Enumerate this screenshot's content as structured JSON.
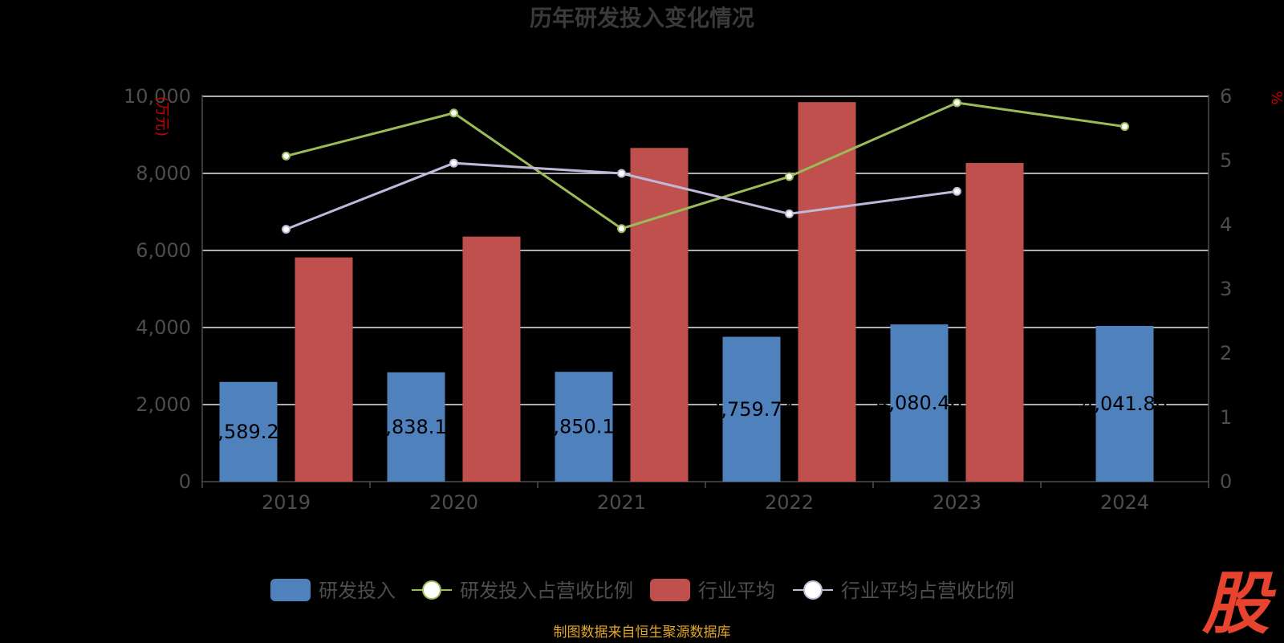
{
  "chart_data": {
    "type": "bar",
    "title": "历年研发投入变化情况",
    "categories": [
      "2019",
      "2020",
      "2021",
      "2022",
      "2023",
      "2024"
    ],
    "y_left_unit": "(万元)",
    "y_right_unit": "%",
    "y_left_range": [
      0,
      10000
    ],
    "y_left_ticks": [
      "0",
      "2,000",
      "4,000",
      "6,000",
      "8,000",
      "10,000"
    ],
    "y_right_range": [
      0,
      6
    ],
    "y_right_ticks": [
      "0",
      "1",
      "2",
      "3",
      "4",
      "5",
      "6"
    ],
    "grid": true,
    "legend_position": "bottom",
    "series": [
      {
        "name": "研发投入",
        "type": "bar",
        "axis": "left",
        "color": "#4f81bd",
        "values": [
          2589.23,
          2838.12,
          2850.17,
          3759.74,
          4080.46,
          4041.8
        ],
        "labels": [
          "2,589.23",
          "2,838.12",
          "2,850.17",
          "3,759.74",
          "4,080.46",
          "4,041.80"
        ]
      },
      {
        "name": "研发投入占营收比例",
        "type": "line",
        "axis": "right",
        "color": "#9bbb59",
        "values": [
          5.07,
          5.74,
          3.94,
          4.75,
          5.9,
          5.53
        ]
      },
      {
        "name": "行业平均",
        "type": "bar",
        "axis": "left",
        "color": "#c0504d",
        "values": [
          5820,
          6360,
          8660,
          9850,
          8270,
          null
        ]
      },
      {
        "name": "行业平均占营收比例",
        "type": "line",
        "axis": "right",
        "color": "#c0b8d8",
        "values": [
          3.93,
          4.96,
          4.8,
          4.17,
          4.52,
          null
        ]
      }
    ]
  },
  "footer": {
    "source": "制图数据来自恒生聚源数据库",
    "watermark": "股"
  },
  "colors": {
    "background": "#000000",
    "title": "#3a3a3a",
    "axis_text": "#4d4d4d",
    "unit_text": "#cc0000",
    "grid": "#e8e8e8",
    "bar_label": "#000000",
    "source_text": "#e3a62c",
    "watermark": "#e8432e"
  }
}
